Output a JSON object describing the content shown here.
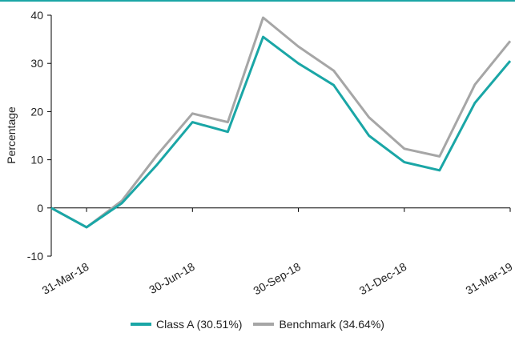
{
  "chart_data": {
    "type": "line",
    "ylabel": "Percentage",
    "xlabel": "",
    "ylim": [
      -10,
      40
    ],
    "yticks": [
      -10,
      0,
      10,
      20,
      30,
      40
    ],
    "x": [
      "28-Feb-18",
      "31-Mar-18",
      "30-Apr-18",
      "31-May-18",
      "30-Jun-18",
      "31-Jul-18",
      "31-Aug-18",
      "30-Sep-18",
      "31-Oct-18",
      "30-Nov-18",
      "31-Dec-18",
      "31-Jan-19",
      "28-Feb-19",
      "31-Mar-19"
    ],
    "xtick_labels": [
      "31-Mar-18",
      "30-Jun-18",
      "30-Sep-18",
      "31-Dec-18",
      "31-Mar-19"
    ],
    "series": [
      {
        "name": "Class A (30.51%)",
        "color": "#1aa6a6",
        "values": [
          0,
          -4,
          1,
          9,
          17.8,
          15.8,
          35.5,
          30,
          25.5,
          15,
          9.5,
          7.8,
          21.8,
          30.51
        ]
      },
      {
        "name": "Benchmark (34.64%)",
        "color": "#a6a6a6",
        "values": [
          0,
          -4,
          1.5,
          11,
          19.6,
          17.8,
          39.5,
          33.5,
          28.5,
          18.8,
          12.3,
          10.7,
          25.6,
          34.64
        ]
      }
    ],
    "grid": false,
    "legend": "bottom"
  }
}
